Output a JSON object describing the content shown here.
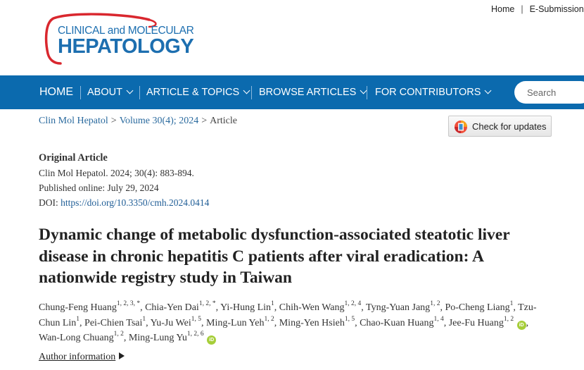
{
  "header": {
    "logo": {
      "line1": "CLINICAL and MOLECULAR",
      "line2": "HEPATOLOGY"
    },
    "util_links": [
      "Home",
      "E-Submission"
    ],
    "util_separator": "|"
  },
  "nav": {
    "items": [
      {
        "label": "HOME",
        "has_dropdown": false
      },
      {
        "label": "ABOUT",
        "has_dropdown": true
      },
      {
        "label": "ARTICLE & TOPICS",
        "has_dropdown": true
      },
      {
        "label": "BROWSE ARTICLES",
        "has_dropdown": true
      },
      {
        "label": "FOR CONTRIBUTORS",
        "has_dropdown": true
      }
    ],
    "search_placeholder": "Search",
    "bg_color": "#0b6aae"
  },
  "breadcrumb": {
    "journal": "Clin Mol Hepatol",
    "volume": "Volume 30(4); 2024",
    "current": "Article",
    "separator": ">"
  },
  "check_updates": {
    "label": "Check for updates",
    "icon": "crossmark-icon"
  },
  "article": {
    "type": "Original Article",
    "citation": "Clin Mol Hepatol. 2024; 30(4): 883-894.",
    "published": "Published online: July 29, 2024",
    "doi_label": "DOI:",
    "doi_url": "https://doi.org/10.3350/cmh.2024.0414",
    "title": "Dynamic change of metabolic dysfunction-associated steatotic liver disease in chronic hepatitis C patients after viral eradication: A nationwide registry study in Taiwan",
    "authors": [
      {
        "name": "Chung-Feng Huang",
        "aff": "1, 2, 3, *",
        "orcid": false
      },
      {
        "name": "Chia-Yen Dai",
        "aff": "1, 2, *",
        "orcid": false
      },
      {
        "name": "Yi-Hung Lin",
        "aff": "1",
        "orcid": false
      },
      {
        "name": "Chih-Wen Wang",
        "aff": "1, 2, 4",
        "orcid": false
      },
      {
        "name": "Tyng-Yuan Jang",
        "aff": "1, 2",
        "orcid": false
      },
      {
        "name": "Po-Cheng Liang",
        "aff": "1",
        "orcid": false
      },
      {
        "name": "Tzu-Chun Lin",
        "aff": "1",
        "orcid": false
      },
      {
        "name": "Pei-Chien Tsai",
        "aff": "1",
        "orcid": false
      },
      {
        "name": "Yu-Ju Wei",
        "aff": "1, 5",
        "orcid": false
      },
      {
        "name": "Ming-Lun Yeh",
        "aff": "1, 2",
        "orcid": false
      },
      {
        "name": "Ming-Yen Hsieh",
        "aff": "1, 5",
        "orcid": false
      },
      {
        "name": "Chao-Kuan Huang",
        "aff": "1, 4",
        "orcid": false
      },
      {
        "name": "Jee-Fu Huang",
        "aff": "1, 2",
        "orcid": true
      },
      {
        "name": "Wan-Long Chuang",
        "aff": "1, 2",
        "orcid": false
      },
      {
        "name": "Ming-Lung Yu",
        "aff": "1, 2, 6",
        "orcid": true
      }
    ],
    "orcid_badge": "iD",
    "author_info_label": "Author information"
  }
}
